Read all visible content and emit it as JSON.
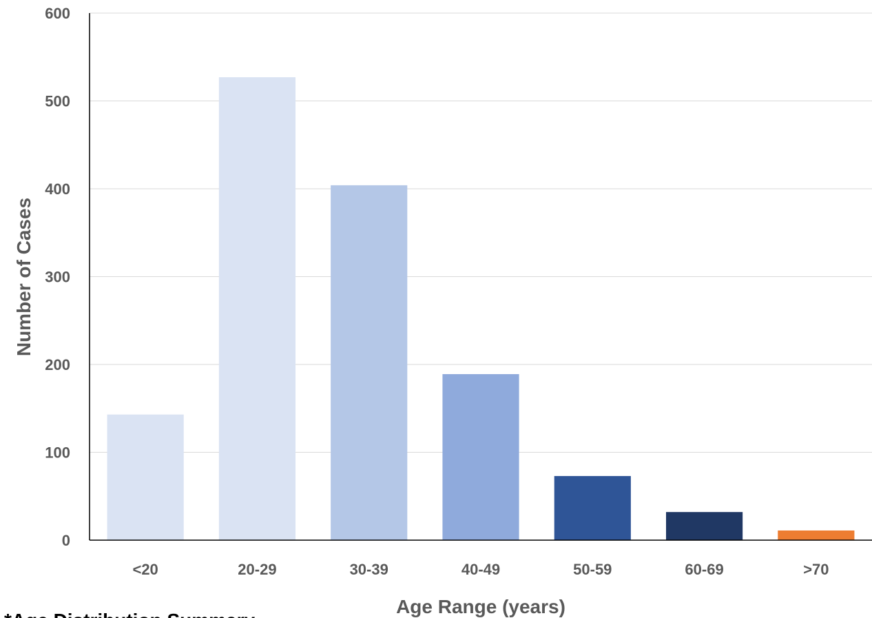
{
  "chart_data": {
    "type": "bar",
    "categories": [
      "<20",
      "20-29",
      "30-39",
      "40-49",
      "50-59",
      "60-69",
      ">70"
    ],
    "values": [
      143,
      527,
      404,
      189,
      73,
      32,
      11
    ],
    "colors": [
      "#dae3f3",
      "#dae3f3",
      "#b4c7e7",
      "#8faadc",
      "#2f5597",
      "#203864",
      "#ed7d31"
    ],
    "title": "",
    "xlabel": "Age Range (years)",
    "ylabel": "Number of Cases",
    "ylim": [
      0,
      600
    ],
    "yticks": [
      0,
      100,
      200,
      300,
      400,
      500,
      600
    ],
    "grid": true,
    "gridline_color": "#d9d9d9",
    "axis_color": "#000000",
    "text_color": "#595959"
  },
  "footer": {
    "text": "*Age Distribution Summary"
  }
}
